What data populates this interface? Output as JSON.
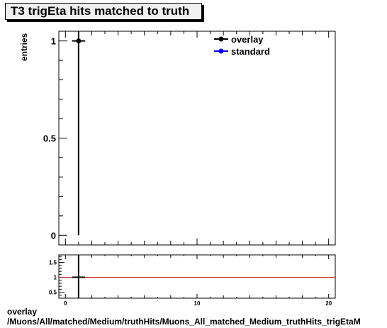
{
  "title": "T3 trigEta hits matched to truth",
  "footer": {
    "line1": "overlay",
    "line2": "/Muons/All/matched/Medium/truthHits/Muons_All_matched_Medium_truthHits_trigEtaM"
  },
  "chart_data": [
    {
      "type": "scatter",
      "name": "main",
      "ylabel": "entries",
      "xlim": [
        -0.5,
        20.5
      ],
      "ylim": [
        -0.05,
        1.05
      ],
      "yticks": [
        0,
        0.5,
        1
      ],
      "ytick_labels": [
        "0",
        "0.5",
        "1"
      ],
      "legend": {
        "position": "top-right",
        "entries": [
          {
            "label": "overlay",
            "color": "#000000"
          },
          {
            "label": "standard",
            "color": "#0000ff"
          }
        ]
      },
      "series": [
        {
          "name": "overlay",
          "color": "#000000",
          "points": [
            {
              "x": 1,
              "y": 1,
              "yerr": 1,
              "xerr": 0.5
            }
          ]
        }
      ]
    },
    {
      "type": "line",
      "name": "ratio",
      "xlim": [
        -0.5,
        20.5
      ],
      "ylim": [
        0.3,
        1.75
      ],
      "xticks": [
        0,
        10,
        20
      ],
      "xtick_labels": [
        "0",
        "10",
        "20"
      ],
      "yticks": [
        0.5,
        1,
        1.5
      ],
      "ytick_labels": [
        "0.5",
        "1",
        "1.5"
      ],
      "reference_line": {
        "y": 1,
        "color": "#cc0000"
      },
      "series": [
        {
          "name": "ratio",
          "color": "#000000",
          "points": [
            {
              "x": 1,
              "y": 1,
              "xerr": 0.5
            }
          ]
        }
      ]
    }
  ]
}
